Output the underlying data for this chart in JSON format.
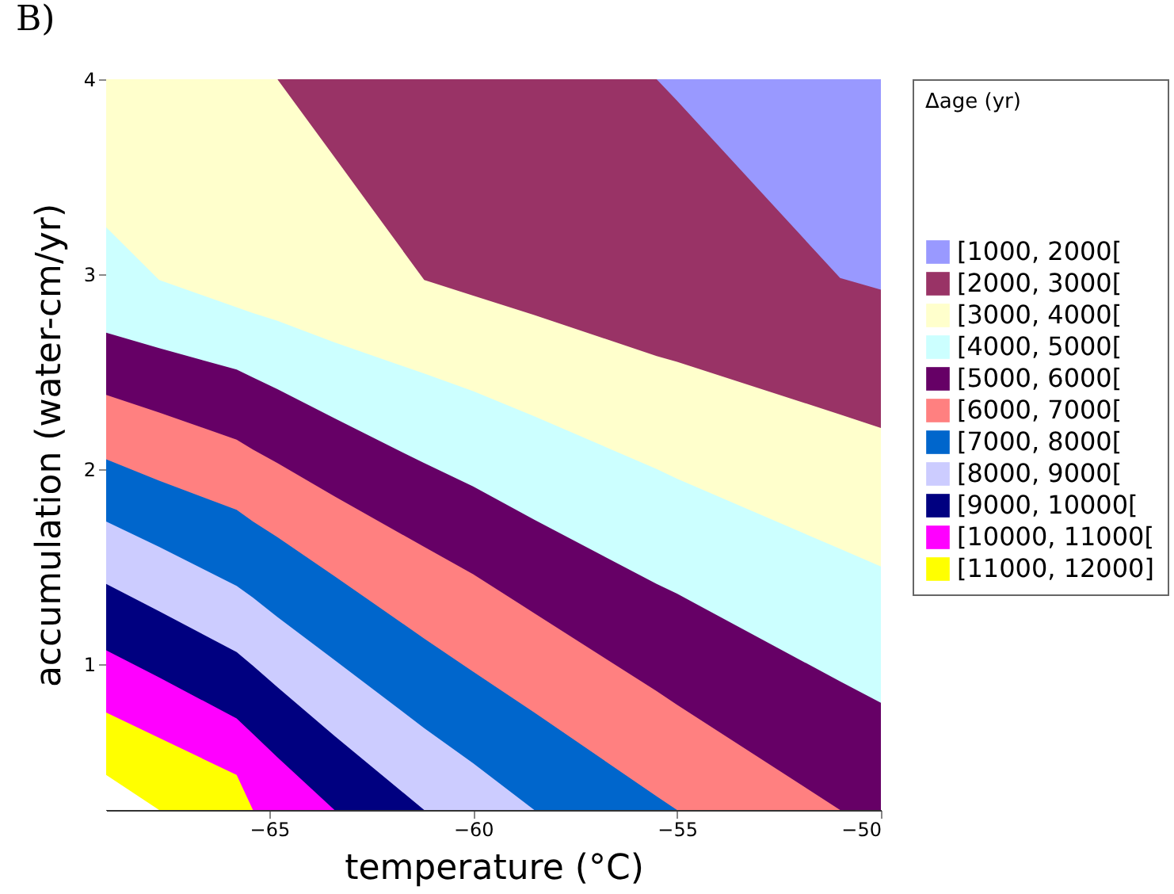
{
  "chart_data": {
    "type": "area",
    "title": "B)",
    "xlabel": "temperature (°C)",
    "ylabel": "accumulation (water-cm/yr)",
    "legend_title": "Δage (yr)",
    "legend": "right",
    "grid": false,
    "x": [
      -69,
      -67.7,
      -65.8,
      -65.4,
      -64.8,
      -63.4,
      -61.2,
      -60,
      -58.5,
      -55.5,
      -55,
      -51,
      -50
    ],
    "xlim": [
      -69,
      -50
    ],
    "xticks": [
      -65,
      -60,
      -55,
      -50
    ],
    "ylim": [
      0.25,
      4
    ],
    "yticks": [
      1,
      2,
      3,
      4
    ],
    "series": [
      {
        "color": "#ffffff",
        "values": [
          0.43,
          0.25,
          null,
          null,
          null,
          null,
          null,
          null,
          null,
          null,
          null,
          null,
          null
        ]
      },
      {
        "name": "[11000, 12000]",
        "color": "#ffff00",
        "values": [
          0.75,
          0.62,
          0.43,
          0.25,
          null,
          null,
          null,
          null,
          null,
          null,
          null,
          null,
          null
        ]
      },
      {
        "name": "[10000, 11000[",
        "color": "#ff00ff",
        "values": [
          1.07,
          0.93,
          0.72,
          0.64,
          0.52,
          0.25,
          null,
          null,
          null,
          null,
          null,
          null,
          null
        ]
      },
      {
        "name": "[9000, 10000[",
        "color": "#000080",
        "values": [
          1.41,
          1.27,
          1.06,
          0.99,
          0.88,
          0.63,
          0.25,
          null,
          null,
          null,
          null,
          null,
          null
        ]
      },
      {
        "name": "[8000, 9000[",
        "color": "#ccccff",
        "values": [
          1.73,
          1.6,
          1.4,
          1.34,
          1.24,
          1.02,
          0.67,
          0.49,
          0.25,
          null,
          null,
          null,
          null
        ]
      },
      {
        "name": "[7000, 8000[",
        "color": "#0066cc",
        "values": [
          2.05,
          1.94,
          1.79,
          1.73,
          1.65,
          1.45,
          1.13,
          0.96,
          0.75,
          0.32,
          0.25,
          null,
          null
        ]
      },
      {
        "name": "[6000, 7000[",
        "color": "#ff8080",
        "values": [
          2.38,
          2.29,
          2.15,
          2.1,
          2.03,
          1.86,
          1.6,
          1.46,
          1.26,
          0.86,
          0.79,
          0.25,
          null
        ]
      },
      {
        "name": "[5000, 6000[",
        "color": "#660066",
        "values": [
          2.7,
          2.62,
          2.51,
          2.47,
          2.41,
          2.26,
          2.03,
          1.91,
          1.74,
          1.41,
          1.36,
          0.91,
          0.8
        ]
      },
      {
        "name": "[4000, 5000[",
        "color": "#ccffff",
        "values": [
          3.24,
          2.97,
          2.83,
          2.8,
          2.76,
          2.65,
          2.49,
          2.4,
          2.27,
          2.0,
          1.95,
          1.59,
          1.5
        ]
      },
      {
        "name": "[3000, 4000[",
        "color": "#ffffcc",
        "values": [
          4,
          4,
          4,
          4,
          4,
          3.6,
          2.97,
          2.89,
          2.79,
          2.58,
          2.55,
          2.28,
          2.21
        ]
      },
      {
        "name": "[2000, 3000[",
        "color": "#993366",
        "values": [
          null,
          null,
          null,
          null,
          4,
          4,
          4,
          4,
          4,
          4,
          3.89,
          2.98,
          2.92
        ]
      },
      {
        "name": "[1000, 2000[",
        "color": "#9999ff",
        "values": [
          null,
          null,
          null,
          null,
          null,
          null,
          null,
          null,
          null,
          4,
          4,
          4,
          4
        ]
      }
    ]
  }
}
